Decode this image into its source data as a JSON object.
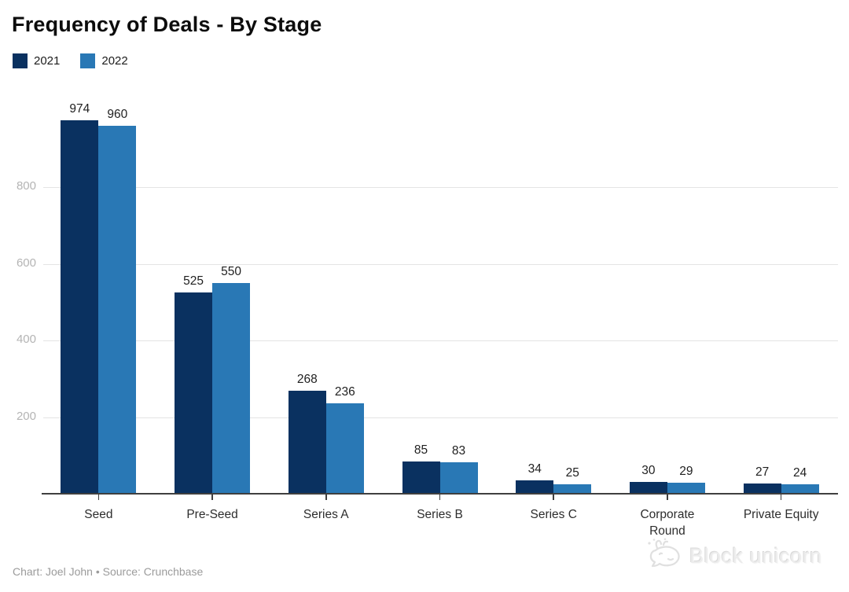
{
  "header": {
    "title": "Frequency of Deals - By Stage"
  },
  "footer": {
    "credit": "Chart: Joel John • Source: Crunchbase"
  },
  "watermark": {
    "text": "Block unicorn",
    "icon": "unicorn-icon"
  },
  "colors": {
    "series_2021": "#0a3160",
    "series_2022": "#2978b5",
    "gridline": "#e4e4e4",
    "axis": "#3f3f3f",
    "y_tick_label": "#b4b4b4",
    "value_label": "#1f1f1f",
    "category_label": "#2d2d2d",
    "background": "#ffffff"
  },
  "chart_data": {
    "type": "bar",
    "title": "Frequency of Deals - By Stage",
    "categories": [
      "Seed",
      "Pre-Seed",
      "Series A",
      "Series B",
      "Series C",
      "Corporate Round",
      "Private Equity"
    ],
    "tick_labels": [
      "Seed",
      "Pre-Seed",
      "Series A",
      "Series B",
      "Series C",
      "Corporate\nRound",
      "Private Equity"
    ],
    "series": [
      {
        "name": "2021",
        "color": "#0a3160",
        "values": [
          974,
          525,
          268,
          85,
          34,
          30,
          27
        ]
      },
      {
        "name": "2022",
        "color": "#2978b5",
        "values": [
          960,
          550,
          236,
          83,
          25,
          29,
          24
        ]
      }
    ],
    "xlabel": "",
    "ylabel": "",
    "yticks": [
      200,
      400,
      600,
      800
    ],
    "ylim": [
      0,
      1000
    ],
    "grid": true,
    "legend_position": "top-left",
    "value_labels": true
  }
}
